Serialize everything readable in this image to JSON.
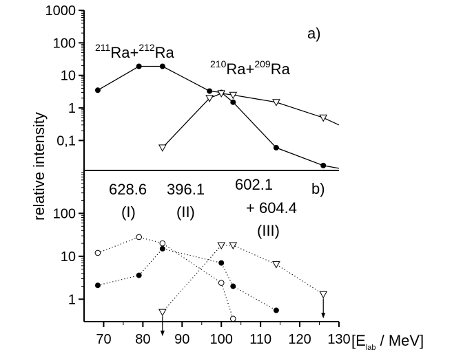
{
  "chart_data": [
    {
      "type": "line",
      "panel_label": "a)",
      "ylabel": "relative intensity",
      "yscale": "log",
      "xlim": [
        65,
        130
      ],
      "ylim": [
        0.012,
        1000
      ],
      "yticks": [
        {
          "v": 0.1,
          "label": "0,1"
        },
        {
          "v": 1,
          "label": "1"
        },
        {
          "v": 10,
          "label": "10"
        },
        {
          "v": 100,
          "label": "100"
        },
        {
          "v": 1000,
          "label": "1000"
        }
      ],
      "annotations": [
        {
          "sup1": "211",
          "base1": "Ra+",
          "sup2": "212",
          "base2": "Ra"
        },
        {
          "sup1": "210",
          "base1": "Ra+",
          "sup2": "209",
          "base2": "Ra"
        }
      ],
      "series": [
        {
          "marker": "filled-circle",
          "line": "solid",
          "x": [
            68.5,
            79,
            85,
            97,
            100,
            103,
            114,
            126,
            130
          ],
          "y": [
            3.5,
            19,
            19,
            3.3,
            3.0,
            1.5,
            0.06,
            0.017,
            0.014
          ]
        },
        {
          "marker": "open-triangle-down",
          "line": "solid",
          "x": [
            85,
            97,
            100,
            103,
            114,
            126,
            130
          ],
          "y": [
            0.06,
            2.0,
            2.8,
            2.5,
            1.5,
            0.5,
            0.3
          ]
        }
      ]
    },
    {
      "type": "line",
      "panel_label": "b)",
      "yscale": "log",
      "xlim": [
        65,
        130
      ],
      "ylim": [
        0.3,
        1000
      ],
      "yticks": [
        {
          "v": 1,
          "label": "1"
        },
        {
          "v": 10,
          "label": "10"
        },
        {
          "v": 100,
          "label": "100"
        }
      ],
      "xticks": [
        70,
        80,
        90,
        100,
        110,
        120,
        130
      ],
      "xlabel": {
        "open": "[E",
        "sub": "lab",
        "close": " / MeV]"
      },
      "annotations": [
        {
          "line1": "628.6",
          "line2": "(I)"
        },
        {
          "line1": "396.1",
          "line2": "(II)"
        },
        {
          "line1": "602.1",
          "line2": "+ 604.4",
          "line3": "(III)"
        }
      ],
      "series": [
        {
          "name": "(I)",
          "marker": "open-circle",
          "line": "dotted",
          "x": [
            68.5,
            79,
            85,
            100,
            103
          ],
          "y": [
            12,
            28,
            20,
            2.4,
            0.35
          ]
        },
        {
          "name": "(II)",
          "marker": "open-triangle-down",
          "line": "dotted",
          "x": [
            85,
            100,
            103,
            114,
            126
          ],
          "y": [
            0.5,
            18,
            18,
            6.5,
            1.3
          ],
          "upper_limits_x": [
            85,
            126
          ]
        },
        {
          "name": "(III)",
          "marker": "filled-circle",
          "line": "dotted",
          "x": [
            68.5,
            79,
            85,
            100,
            103,
            114
          ],
          "y": [
            2.1,
            3.6,
            15,
            7,
            2.0,
            0.55
          ]
        }
      ]
    }
  ]
}
